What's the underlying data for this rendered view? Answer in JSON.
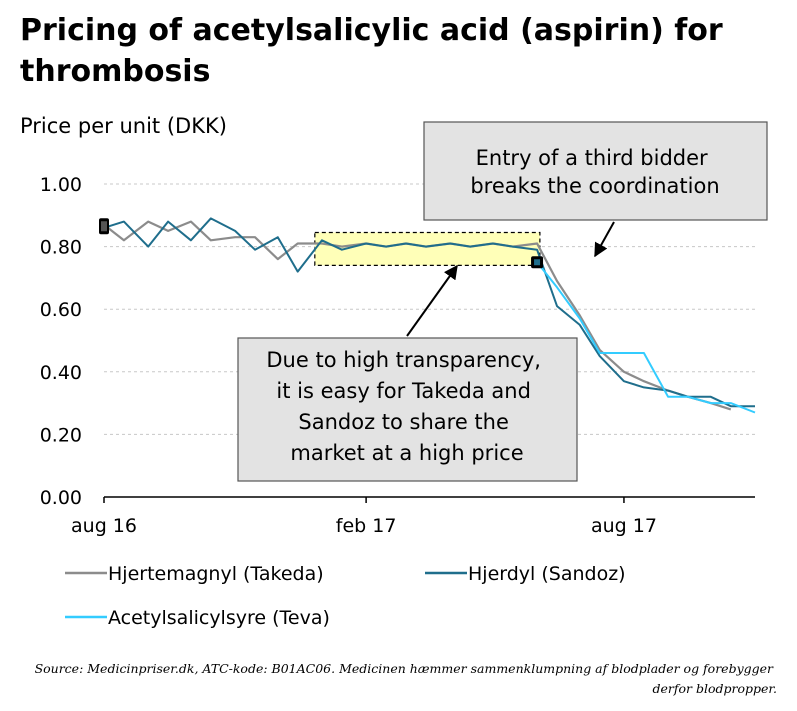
{
  "chart_data": {
    "type": "line",
    "title": "Pricing of acetylsalicylic acid (aspirin) for thrombosis",
    "ylabel": "Price per unit (DKK)",
    "xlabel": "",
    "ylim": [
      0,
      1
    ],
    "yticks": [
      "0.00",
      "0.20",
      "0.40",
      "0.60",
      "0.80",
      "1.00"
    ],
    "xticks": [
      "aug 16",
      "feb 17",
      "aug 17"
    ],
    "grid": true,
    "legend_position": "bottom",
    "series": [
      {
        "name": "Hjertemagnyl (Takeda)",
        "color": "#8c8c8c",
        "points": [
          [
            "2016-08-01",
            0.87
          ],
          [
            "2016-08-15",
            0.82
          ],
          [
            "2016-09-01",
            0.88
          ],
          [
            "2016-09-15",
            0.85
          ],
          [
            "2016-10-01",
            0.88
          ],
          [
            "2016-10-15",
            0.82
          ],
          [
            "2016-11-01",
            0.83
          ],
          [
            "2016-11-15",
            0.83
          ],
          [
            "2016-12-01",
            0.76
          ],
          [
            "2016-12-15",
            0.81
          ],
          [
            "2017-01-01",
            0.81
          ],
          [
            "2017-01-15",
            0.8
          ],
          [
            "2017-02-01",
            0.81
          ],
          [
            "2017-02-15",
            0.8
          ],
          [
            "2017-03-01",
            0.81
          ],
          [
            "2017-03-15",
            0.8
          ],
          [
            "2017-04-01",
            0.81
          ],
          [
            "2017-04-15",
            0.8
          ],
          [
            "2017-05-01",
            0.81
          ],
          [
            "2017-05-15",
            0.8
          ],
          [
            "2017-06-01",
            0.81
          ],
          [
            "2017-06-15",
            0.69
          ],
          [
            "2017-07-01",
            0.58
          ],
          [
            "2017-07-15",
            0.47
          ],
          [
            "2017-08-01",
            0.4
          ],
          [
            "2017-08-15",
            0.37
          ],
          [
            "2017-09-01",
            0.34
          ],
          [
            "2017-09-15",
            0.32
          ],
          [
            "2017-10-01",
            0.3
          ],
          [
            "2017-10-15",
            0.28
          ]
        ]
      },
      {
        "name": "Hjerdyl (Sandoz)",
        "color": "#1f6e8c",
        "points": [
          [
            "2016-08-01",
            0.86
          ],
          [
            "2016-08-15",
            0.88
          ],
          [
            "2016-09-01",
            0.8
          ],
          [
            "2016-09-15",
            0.88
          ],
          [
            "2016-10-01",
            0.82
          ],
          [
            "2016-10-15",
            0.89
          ],
          [
            "2016-11-01",
            0.85
          ],
          [
            "2016-11-15",
            0.79
          ],
          [
            "2016-12-01",
            0.83
          ],
          [
            "2016-12-15",
            0.72
          ],
          [
            "2017-01-01",
            0.82
          ],
          [
            "2017-01-15",
            0.79
          ],
          [
            "2017-02-01",
            0.81
          ],
          [
            "2017-02-15",
            0.8
          ],
          [
            "2017-03-01",
            0.81
          ],
          [
            "2017-03-15",
            0.8
          ],
          [
            "2017-04-01",
            0.81
          ],
          [
            "2017-04-15",
            0.8
          ],
          [
            "2017-05-01",
            0.81
          ],
          [
            "2017-05-15",
            0.8
          ],
          [
            "2017-06-01",
            0.79
          ],
          [
            "2017-06-15",
            0.61
          ],
          [
            "2017-07-01",
            0.55
          ],
          [
            "2017-07-15",
            0.45
          ],
          [
            "2017-08-01",
            0.37
          ],
          [
            "2017-08-15",
            0.35
          ],
          [
            "2017-09-01",
            0.34
          ],
          [
            "2017-09-15",
            0.32
          ],
          [
            "2017-10-01",
            0.32
          ],
          [
            "2017-10-15",
            0.29
          ],
          [
            "2017-11-01",
            0.29
          ]
        ]
      },
      {
        "name": "Acetylsalicylsyre (Teva)",
        "color": "#33ccff",
        "points": [
          [
            "2017-06-01",
            0.75
          ],
          [
            "2017-06-15",
            0.67
          ],
          [
            "2017-07-01",
            0.57
          ],
          [
            "2017-07-15",
            0.46
          ],
          [
            "2017-08-01",
            0.46
          ],
          [
            "2017-08-15",
            0.46
          ],
          [
            "2017-09-01",
            0.32
          ],
          [
            "2017-09-15",
            0.32
          ],
          [
            "2017-10-01",
            0.3
          ],
          [
            "2017-10-15",
            0.3
          ],
          [
            "2017-11-01",
            0.27
          ]
        ]
      }
    ],
    "annotations": [
      "Entry of a third bidder breaks the coordination",
      "Due to high transparency, it is easy for Takeda and Sandoz to share the market at a high price"
    ]
  },
  "source": "Source: Medicinpriser.dk, ATC-kode: B01AC06. Medicinen hæmmer sammenklumpning af blodplader og forebygger derfor blodpropper."
}
